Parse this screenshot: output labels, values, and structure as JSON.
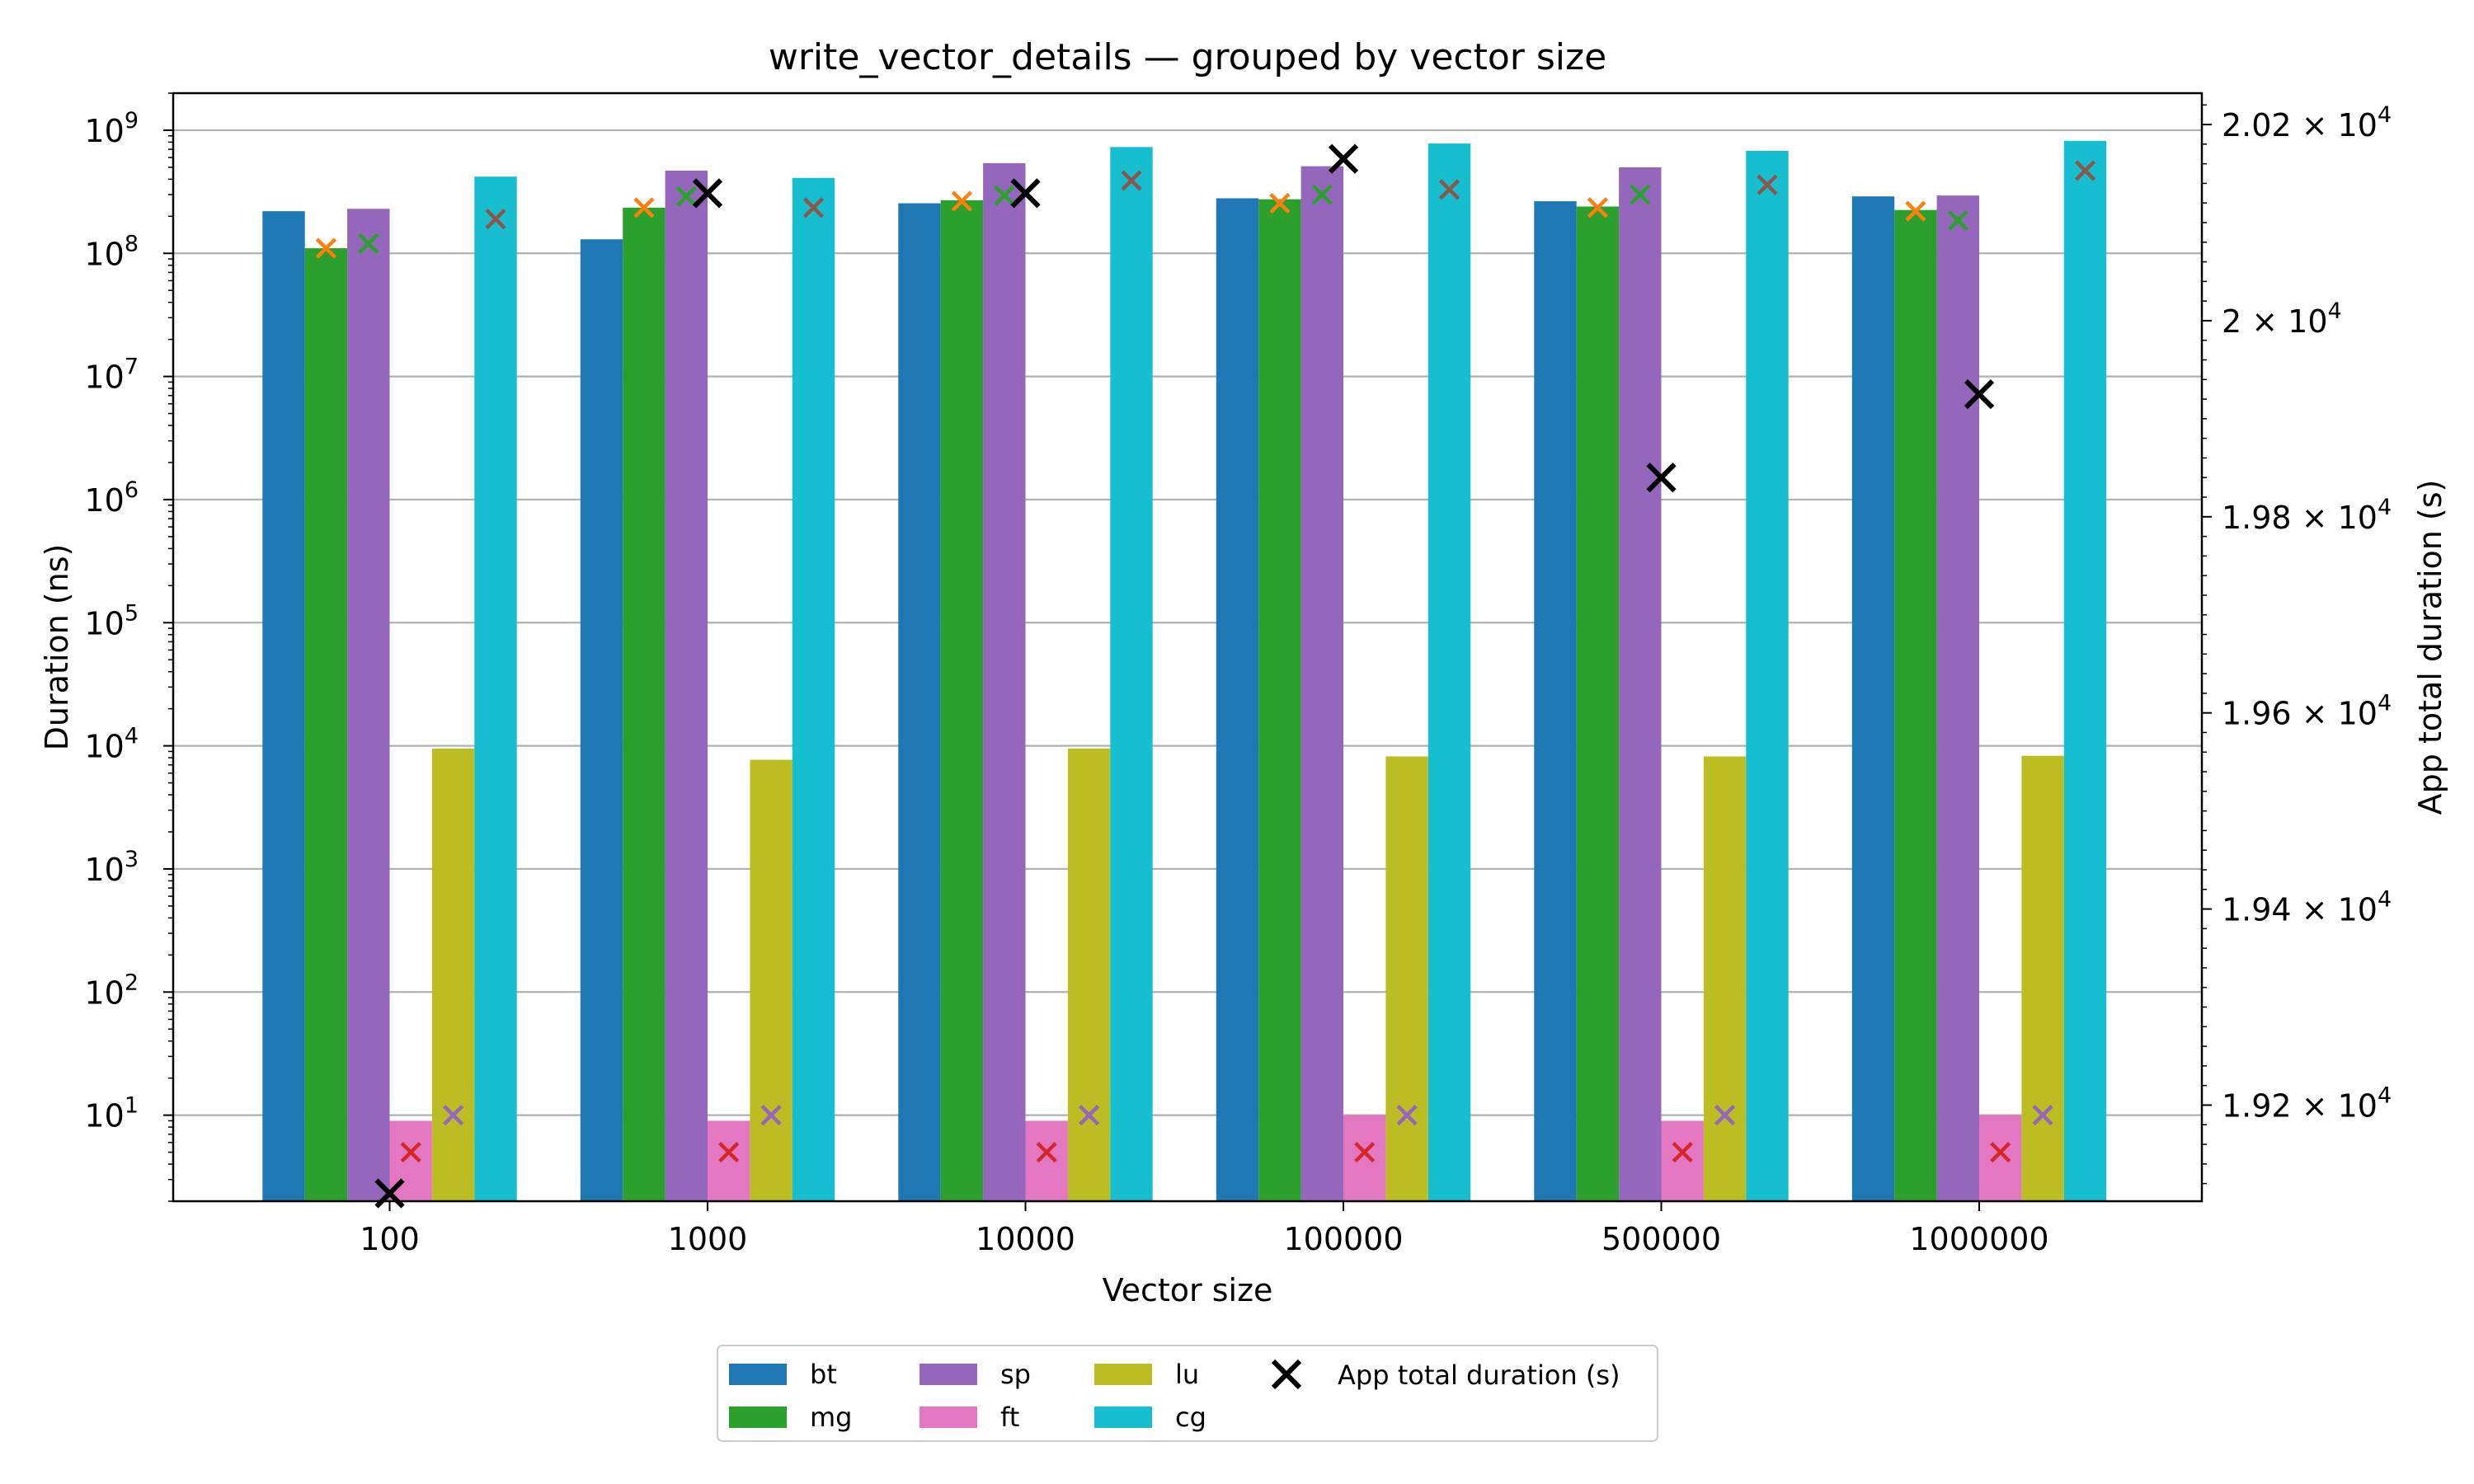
{
  "chart_data": {
    "type": "bar",
    "title": "write_vector_details — grouped by vector size",
    "xlabel": "Vector size",
    "ylabel": "Duration (ns)",
    "y2label": "App total duration (s)",
    "yscale": "log",
    "ylim": [
      2,
      2000000000
    ],
    "y2lim": [
      19102,
      20232
    ],
    "grid": "y-major",
    "legend_placement": "bottom-center",
    "categories": [
      "100",
      "1000",
      "10000",
      "100000",
      "500000",
      "1000000"
    ],
    "y_ticks": [
      {
        "value": 10,
        "base": "10",
        "exp": "1"
      },
      {
        "value": 100,
        "base": "10",
        "exp": "2"
      },
      {
        "value": 1000,
        "base": "10",
        "exp": "3"
      },
      {
        "value": 10000,
        "base": "10",
        "exp": "4"
      },
      {
        "value": 100000,
        "base": "10",
        "exp": "5"
      },
      {
        "value": 1000000,
        "base": "10",
        "exp": "6"
      },
      {
        "value": 10000000,
        "base": "10",
        "exp": "7"
      },
      {
        "value": 100000000,
        "base": "10",
        "exp": "8"
      },
      {
        "value": 1000000000,
        "base": "10",
        "exp": "9"
      }
    ],
    "y2_ticks": [
      {
        "value": 19200,
        "mant": "1.92 × 10",
        "exp": "4"
      },
      {
        "value": 19400,
        "mant": "1.94 × 10",
        "exp": "4"
      },
      {
        "value": 19600,
        "mant": "1.96 × 10",
        "exp": "4"
      },
      {
        "value": 19800,
        "mant": "1.98 × 10",
        "exp": "4"
      },
      {
        "value": 20000,
        "mant": "2 × 10",
        "exp": "4"
      },
      {
        "value": 20200,
        "mant": "2.02 × 10",
        "exp": "4"
      }
    ],
    "series": [
      {
        "name": "bt",
        "color": "#1f77b4",
        "values": [
          220000000,
          130000000,
          255000000,
          280000000,
          265000000,
          290000000
        ]
      },
      {
        "name": "mg",
        "color": "#2ca02c",
        "values": [
          110000000,
          235000000,
          270000000,
          275000000,
          240000000,
          225000000
        ]
      },
      {
        "name": "sp",
        "color": "#9467bd",
        "values": [
          230000000,
          470000000,
          540000000,
          510000000,
          500000000,
          295000000
        ]
      },
      {
        "name": "ft",
        "color": "#e377c2",
        "values": [
          9,
          9,
          9,
          10,
          9,
          10
        ]
      },
      {
        "name": "lu",
        "color": "#bcbd22",
        "values": [
          9500,
          7700,
          9500,
          8200,
          8200,
          8300
        ]
      },
      {
        "name": "cg",
        "color": "#17becf",
        "values": [
          420000000,
          410000000,
          730000000,
          780000000,
          680000000,
          820000000
        ]
      }
    ],
    "markers": [
      {
        "series_index": 1,
        "color": "#ff7f0e",
        "values": [
          110000000,
          235000000,
          265000000,
          255000000,
          235000000,
          220000000
        ]
      },
      {
        "series_index": 2,
        "color": "#2ca02c",
        "values": [
          120000000,
          290000000,
          295000000,
          300000000,
          300000000,
          185000000
        ]
      },
      {
        "series_index": 3,
        "color": "#d62728",
        "values": [
          5,
          5,
          5,
          5,
          5,
          5
        ]
      },
      {
        "series_index": 4,
        "color": "#9467bd",
        "values": [
          10,
          10,
          10,
          10,
          10,
          10
        ]
      },
      {
        "series_index": 5,
        "color": "#8c564b",
        "values": [
          190000000,
          235000000,
          390000000,
          330000000,
          360000000,
          470000000
        ]
      }
    ],
    "app_total": {
      "name": "App total duration (s)",
      "color": "#000000",
      "values": [
        19110,
        20130,
        20130,
        20165,
        19840,
        19925
      ]
    }
  }
}
